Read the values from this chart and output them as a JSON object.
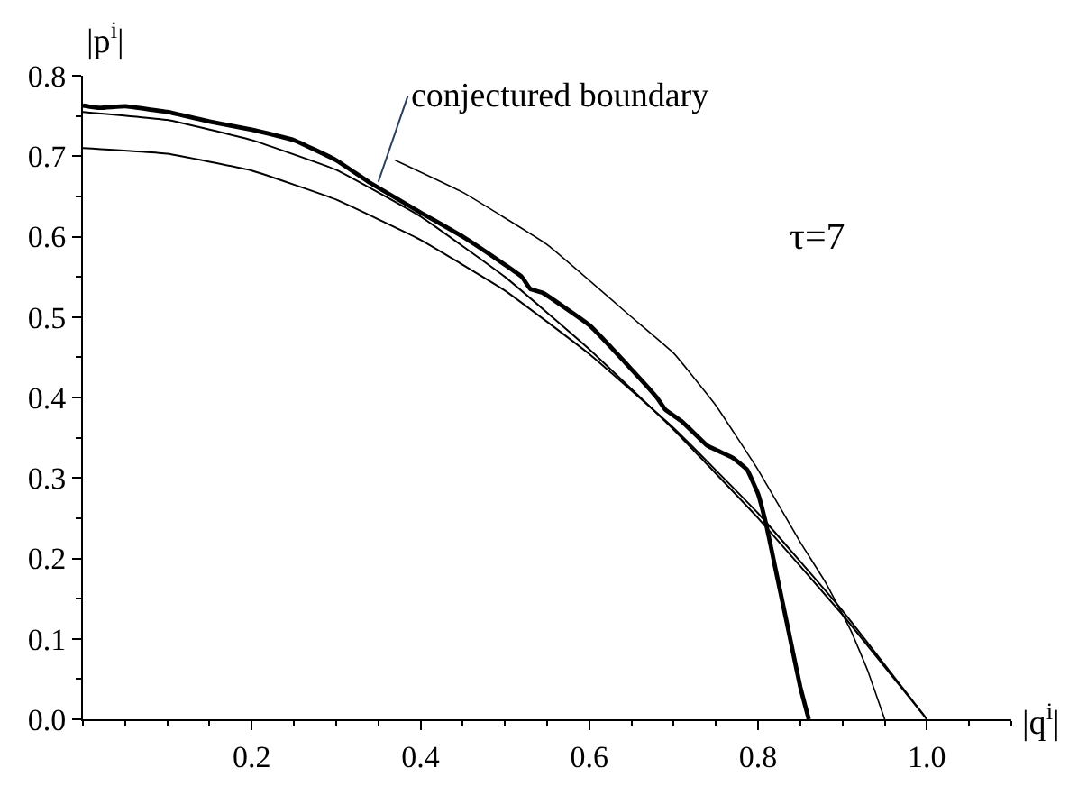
{
  "chart_data": {
    "type": "line",
    "xlabel": "|q$^{i}$|",
    "ylabel": "|p$^{i}$|",
    "xlim": [
      0,
      1.1
    ],
    "ylim": [
      0,
      0.8
    ],
    "xticks": [
      0.2,
      0.4,
      0.6,
      0.8,
      {
        "value": 1,
        "label": "1.0"
      }
    ],
    "yticks": [
      {
        "value": 0,
        "label": "0.0"
      },
      0.1,
      0.2,
      0.3,
      0.4,
      0.5,
      0.6,
      0.7,
      0.8
    ],
    "marker": "none",
    "line_style": "solid",
    "series": [
      {
        "color": "#000000",
        "x": [
          0,
          0.1,
          0.2,
          0.3,
          0.4,
          0.5,
          0.6,
          0.7,
          0.8,
          0.9,
          1.0
        ],
        "values": [
          0.71,
          0.703,
          0.682,
          0.646,
          0.596,
          0.533,
          0.454,
          0.362,
          0.256,
          0.135,
          0
        ]
      },
      {
        "color": "#000000",
        "x": [
          0,
          0.1,
          0.2,
          0.3,
          0.4,
          0.5,
          0.6,
          0.7,
          0.8,
          0.9,
          1.0
        ],
        "values": [
          0.755,
          0.745,
          0.72,
          0.683,
          0.625,
          0.55,
          0.46,
          0.36,
          0.25,
          0.13,
          0
        ]
      },
      {
        "color": "#000000",
        "x": [
          0,
          0.02,
          0.05,
          0.1,
          0.15,
          0.2,
          0.25,
          0.3,
          0.34,
          0.4,
          0.45,
          0.5,
          0.52,
          0.53,
          0.545,
          0.6,
          0.65,
          0.68,
          0.69,
          0.71,
          0.74,
          0.77,
          0.787,
          0.8,
          0.81,
          0.82,
          0.83,
          0.84,
          0.85,
          0.86
        ],
        "values": [
          0.763,
          0.76,
          0.762,
          0.755,
          0.743,
          0.733,
          0.72,
          0.695,
          0.667,
          0.63,
          0.6,
          0.565,
          0.55,
          0.535,
          0.53,
          0.49,
          0.435,
          0.4,
          0.385,
          0.37,
          0.34,
          0.325,
          0.31,
          0.28,
          0.24,
          0.19,
          0.14,
          0.09,
          0.04,
          0
        ]
      },
      {
        "color": "#000000",
        "x": [
          0.37,
          0.45,
          0.55,
          0.65,
          0.7,
          0.75,
          0.8,
          0.85,
          0.88,
          0.91,
          0.93,
          0.94,
          0.95
        ],
        "values": [
          0.695,
          0.655,
          0.59,
          0.5,
          0.455,
          0.39,
          0.31,
          0.22,
          0.17,
          0.11,
          0.06,
          0.03,
          0
        ]
      }
    ],
    "annotations": [
      {
        "text": "conjectured boundary",
        "x": 0.35,
        "y": 0.668
      },
      "τ=7"
    ]
  }
}
